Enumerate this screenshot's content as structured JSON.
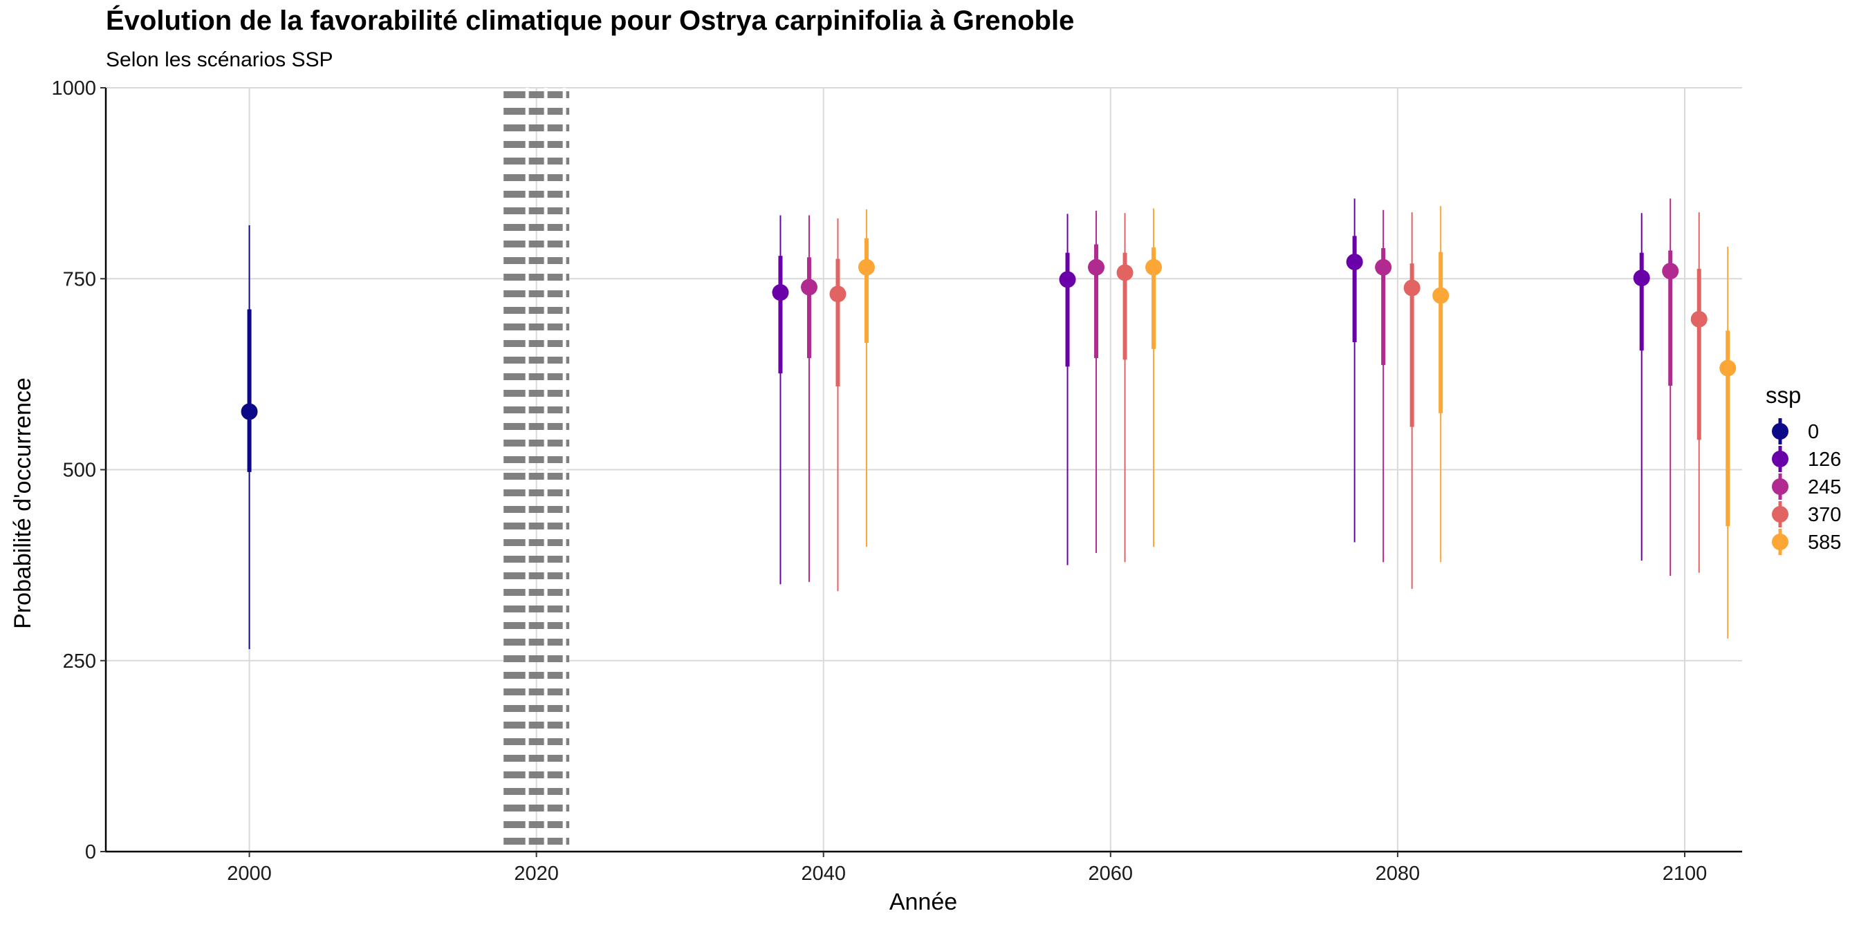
{
  "chart_data": {
    "type": "pointrange",
    "title": "Évolution de la favorabilité climatique pour Ostrya carpinifolia à Grenoble",
    "subtitle": "Selon les scénarios SSP",
    "xlabel": "Année",
    "ylabel": "Probabilité d'occurrence",
    "xlim": [
      1990,
      2104
    ],
    "ylim": [
      0,
      1000
    ],
    "x_ticks": [
      2000,
      2020,
      2040,
      2060,
      2080,
      2100
    ],
    "y_ticks": [
      0,
      250,
      500,
      750,
      1000
    ],
    "grid": true,
    "reference_line": {
      "x": 2020,
      "style": "dotted",
      "color": "#808080"
    },
    "legend": {
      "title": "ssp",
      "placement": "right",
      "items": [
        {
          "label": "0",
          "color": "#0D0887"
        },
        {
          "label": "126",
          "color": "#6A00A8"
        },
        {
          "label": "245",
          "color": "#B12A90"
        },
        {
          "label": "370",
          "color": "#E16462"
        },
        {
          "label": "585",
          "color": "#FCA636"
        }
      ]
    },
    "series": [
      {
        "name": "0",
        "color": "#0D0887",
        "points": [
          {
            "x": 2000,
            "y": 576,
            "inner": [
              497,
              710
            ],
            "outer": [
              265,
              820
            ]
          }
        ]
      },
      {
        "name": "126",
        "color": "#6A00A8",
        "points": [
          {
            "x": 2037,
            "y": 732,
            "inner": [
              626,
              780
            ],
            "outer": [
              350,
              833
            ]
          },
          {
            "x": 2057,
            "y": 749,
            "inner": [
              635,
              784
            ],
            "outer": [
              375,
              835
            ]
          },
          {
            "x": 2077,
            "y": 772,
            "inner": [
              667,
              806
            ],
            "outer": [
              405,
              855
            ]
          },
          {
            "x": 2097,
            "y": 751,
            "inner": [
              656,
              784
            ],
            "outer": [
              381,
              836
            ]
          }
        ]
      },
      {
        "name": "245",
        "color": "#B12A90",
        "points": [
          {
            "x": 2039,
            "y": 739,
            "inner": [
              646,
              778
            ],
            "outer": [
              353,
              833
            ]
          },
          {
            "x": 2059,
            "y": 765,
            "inner": [
              646,
              795
            ],
            "outer": [
              391,
              839
            ]
          },
          {
            "x": 2079,
            "y": 765,
            "inner": [
              637,
              790
            ],
            "outer": [
              379,
              840
            ]
          },
          {
            "x": 2099,
            "y": 760,
            "inner": [
              610,
              787
            ],
            "outer": [
              361,
              855
            ]
          }
        ]
      },
      {
        "name": "370",
        "color": "#E16462",
        "points": [
          {
            "x": 2041,
            "y": 730,
            "inner": [
              609,
              776
            ],
            "outer": [
              341,
              829
            ]
          },
          {
            "x": 2061,
            "y": 758,
            "inner": [
              644,
              784
            ],
            "outer": [
              379,
              836
            ]
          },
          {
            "x": 2081,
            "y": 738,
            "inner": [
              556,
              770
            ],
            "outer": [
              344,
              837
            ]
          },
          {
            "x": 2101,
            "y": 697,
            "inner": [
              539,
              763
            ],
            "outer": [
              365,
              837
            ]
          }
        ]
      },
      {
        "name": "585",
        "color": "#FCA636",
        "points": [
          {
            "x": 2043,
            "y": 765,
            "inner": [
              666,
              803
            ],
            "outer": [
              399,
              841
            ]
          },
          {
            "x": 2063,
            "y": 765,
            "inner": [
              658,
              791
            ],
            "outer": [
              399,
              842
            ]
          },
          {
            "x": 2083,
            "y": 728,
            "inner": [
              574,
              785
            ],
            "outer": [
              379,
              845
            ]
          },
          {
            "x": 2103,
            "y": 633,
            "inner": [
              426,
              682
            ],
            "outer": [
              279,
              792
            ]
          }
        ]
      }
    ]
  }
}
